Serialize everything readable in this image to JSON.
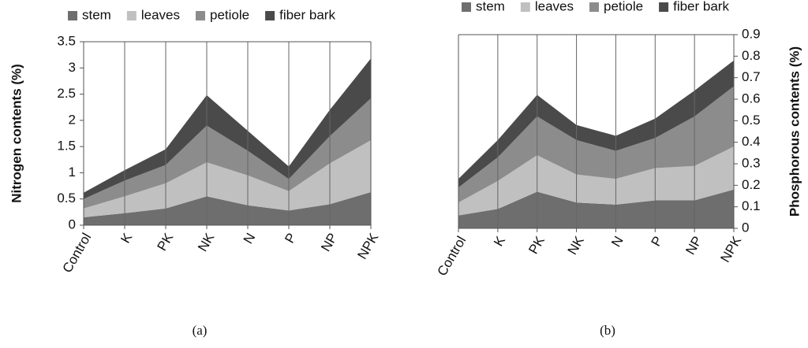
{
  "chart_data": [
    {
      "type": "area",
      "stacked": true,
      "caption": "(a)",
      "y_label": "Nitrogen contents (%)",
      "y_axis_side": "left",
      "legend": "top",
      "categories": [
        "Control",
        "K",
        "PK",
        "NK",
        "N",
        "P",
        "NP",
        "NPK"
      ],
      "series": [
        {
          "name": "stem",
          "color": "#6e6e6e",
          "values": [
            0.15,
            0.23,
            0.32,
            0.55,
            0.38,
            0.28,
            0.4,
            0.63
          ]
        },
        {
          "name": "leaves",
          "color": "#c0c0c0",
          "values": [
            0.17,
            0.32,
            0.48,
            0.65,
            0.57,
            0.37,
            0.78,
            0.99
          ]
        },
        {
          "name": "petiole",
          "color": "#8c8c8c",
          "values": [
            0.18,
            0.3,
            0.35,
            0.7,
            0.47,
            0.23,
            0.52,
            0.8
          ]
        },
        {
          "name": "fiber bark",
          "color": "#4a4a4a",
          "values": [
            0.12,
            0.2,
            0.3,
            0.58,
            0.38,
            0.24,
            0.5,
            0.76
          ]
        }
      ],
      "ylim": [
        0,
        3.5
      ],
      "yticks": [
        0,
        0.5,
        1,
        1.5,
        2,
        2.5,
        3,
        3.5
      ],
      "grid": "vertical"
    },
    {
      "type": "area",
      "stacked": true,
      "caption": "(b)",
      "y_label": "Phosphorous contents (%)",
      "y_axis_side": "right",
      "legend": "top",
      "categories": [
        "Control",
        "K",
        "PK",
        "NK",
        "N",
        "P",
        "NP",
        "NPK"
      ],
      "series": [
        {
          "name": "stem",
          "color": "#6e6e6e",
          "values": [
            0.06,
            0.09,
            0.17,
            0.12,
            0.11,
            0.13,
            0.13,
            0.18
          ]
        },
        {
          "name": "leaves",
          "color": "#c0c0c0",
          "values": [
            0.06,
            0.13,
            0.17,
            0.13,
            0.12,
            0.15,
            0.16,
            0.2
          ]
        },
        {
          "name": "petiole",
          "color": "#8c8c8c",
          "values": [
            0.07,
            0.11,
            0.18,
            0.16,
            0.13,
            0.14,
            0.23,
            0.28
          ]
        },
        {
          "name": "fiber bark",
          "color": "#4a4a4a",
          "values": [
            0.04,
            0.08,
            0.1,
            0.07,
            0.07,
            0.09,
            0.12,
            0.12
          ]
        }
      ],
      "ylim": [
        0,
        0.9
      ],
      "yticks": [
        0,
        0.1,
        0.2,
        0.3,
        0.4,
        0.5,
        0.6,
        0.7,
        0.8,
        0.9
      ],
      "grid": "vertical"
    }
  ]
}
